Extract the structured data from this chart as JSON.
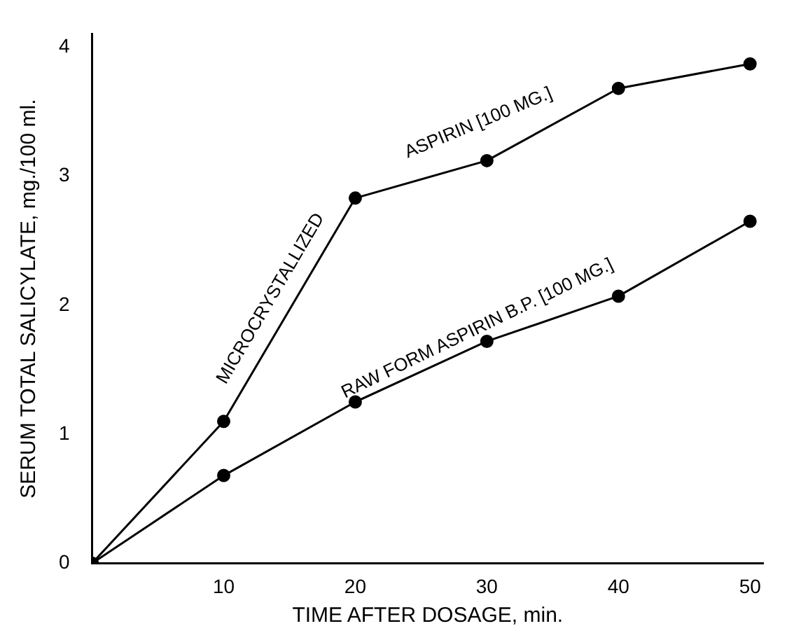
{
  "chart_data": {
    "type": "line",
    "xlabel": "TIME AFTER DOSAGE, min.",
    "ylabel": "SERUM TOTAL SALICYLATE, mg./100 ml.",
    "x": [
      0,
      10,
      20,
      30,
      40,
      50
    ],
    "series": [
      {
        "name": "MICROCRYSTALLIZED ASPIRIN [100 MG.]",
        "color": "#000000",
        "values": [
          0,
          1.1,
          2.83,
          3.12,
          3.68,
          3.87
        ]
      },
      {
        "name": "RAW FORM ASPIRIN B.P. [100 MG.]",
        "color": "#000000",
        "values": [
          0,
          0.68,
          1.25,
          1.72,
          2.07,
          2.65
        ]
      }
    ],
    "xlim": [
      0,
      51
    ],
    "xticks": [
      10,
      20,
      30,
      40,
      50
    ],
    "ylim": [
      0,
      4.1
    ],
    "yticks": [
      0,
      1,
      2,
      3,
      4
    ],
    "grid": false,
    "legend": false,
    "marker": "circle",
    "line_style": "solid"
  }
}
